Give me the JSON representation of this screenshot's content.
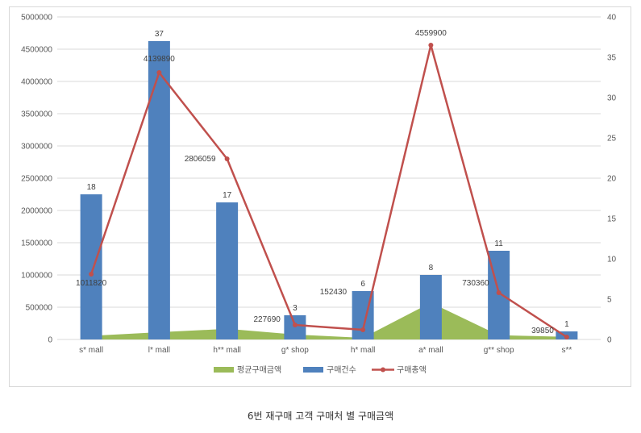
{
  "caption": "6번 재구매 고객 구매처 별 구매금액",
  "colors": {
    "area": "#9bbb59",
    "bar": "#4f81bd",
    "line": "#c0504d",
    "grid": "#d9d9d9",
    "text": "#595959"
  },
  "chart_data": {
    "type": "bar",
    "title": "",
    "categories": [
      "s* mall",
      "l* mall",
      "h** mall",
      "g* shop",
      "h* mall",
      "a* mall",
      "g** shop",
      "s**"
    ],
    "y_left": {
      "range": [
        0,
        5000000
      ],
      "ticks": [
        "0",
        "500000",
        "1000000",
        "1500000",
        "2000000",
        "2500000",
        "3000000",
        "3500000",
        "4000000",
        "4500000",
        "5000000"
      ]
    },
    "y_right": {
      "range": [
        0,
        40
      ],
      "ticks": [
        "0",
        "5",
        "10",
        "15",
        "20",
        "25",
        "30",
        "35",
        "40"
      ]
    },
    "grid": true,
    "legend_position": "bottom",
    "series": [
      {
        "name": "평균구매금액",
        "type": "area",
        "axis": "left",
        "values": [
          56212,
          111889,
          165062,
          75897,
          25405,
          569988,
          66396,
          39850
        ]
      },
      {
        "name": "구매건수",
        "type": "bar",
        "axis": "right",
        "values": [
          18,
          37,
          17,
          3,
          6,
          8,
          11,
          1
        ],
        "labels": [
          "18",
          "37",
          "17",
          "3",
          "6",
          "8",
          "11",
          "1"
        ]
      },
      {
        "name": "구매총액",
        "type": "line",
        "axis": "right",
        "values": [
          8.1,
          33.1,
          22.4,
          1.8,
          1.2,
          36.5,
          5.8,
          0.3
        ],
        "labels": [
          "1011820",
          "4139890",
          "2806059",
          "227690",
          "152430",
          "4559900",
          "730360",
          "39850"
        ]
      }
    ]
  }
}
